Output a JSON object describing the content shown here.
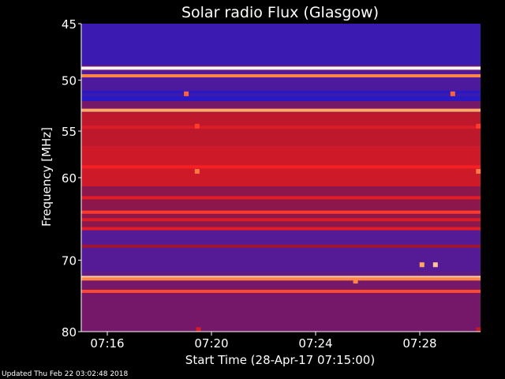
{
  "chart_data": {
    "type": "heatmap",
    "title": "Solar radio Flux (Glasgow)",
    "xlabel": "Start Time (28-Apr-17 07:15:00)",
    "ylabel": "Frequency [MHz]",
    "x_start": "07:15:00",
    "x_end": "07:30:20",
    "ylim": [
      45,
      80
    ],
    "y_ticks": [
      "45",
      "50",
      "55",
      "60",
      "70",
      "80"
    ],
    "x_ticks": [
      "07:16",
      "07:20",
      "07:24",
      "07:28"
    ],
    "y_scale": "log",
    "colormap": [
      "#000044",
      "#1a1ad0",
      "#5a1a90",
      "#a01530",
      "#ff2020",
      "#ffa050",
      "#ffffff"
    ],
    "background_bands": [
      {
        "f_from": 45.0,
        "f_to": 48.6,
        "level": 0.25
      },
      {
        "f_from": 49.2,
        "f_to": 51.0,
        "level": 0.3
      },
      {
        "f_from": 51.0,
        "f_to": 52.0,
        "level": 0.2
      },
      {
        "f_from": 52.0,
        "f_to": 52.9,
        "level": 0.4
      },
      {
        "f_from": 53.1,
        "f_to": 56.5,
        "level": 0.55
      },
      {
        "f_from": 56.5,
        "f_to": 61.0,
        "level": 0.58
      },
      {
        "f_from": 61.0,
        "f_to": 66.0,
        "level": 0.45
      },
      {
        "f_from": 66.0,
        "f_to": 71.5,
        "level": 0.32
      },
      {
        "f_from": 72.5,
        "f_to": 80.0,
        "level": 0.4
      }
    ],
    "interference_lines": [
      {
        "f": 48.9,
        "level": 0.98
      },
      {
        "f": 49.6,
        "level": 0.8
      },
      {
        "f": 51.4,
        "level": 0.25
      },
      {
        "f": 52.9,
        "level": 0.85
      },
      {
        "f": 54.6,
        "level": 0.6
      },
      {
        "f": 58.8,
        "level": 0.65
      },
      {
        "f": 62.3,
        "level": 0.62
      },
      {
        "f": 64.0,
        "level": 0.7
      },
      {
        "f": 64.9,
        "level": 0.6
      },
      {
        "f": 66.0,
        "level": 0.62
      },
      {
        "f": 68.2,
        "level": 0.5
      },
      {
        "f": 72.3,
        "level": 0.92
      },
      {
        "f": 72.5,
        "level": 0.8
      },
      {
        "f": 74.2,
        "level": 0.72
      }
    ],
    "bursts": [
      {
        "time": "07:19:02",
        "f": 51.3,
        "level": 0.75
      },
      {
        "time": "07:29:16",
        "f": 51.3,
        "level": 0.75
      },
      {
        "time": "07:19:27",
        "f": 54.5,
        "level": 0.7
      },
      {
        "time": "07:19:27",
        "f": 59.3,
        "level": 0.78
      },
      {
        "time": "07:30:15",
        "f": 54.5,
        "level": 0.7
      },
      {
        "time": "07:30:15",
        "f": 59.3,
        "level": 0.78
      },
      {
        "time": "07:28:05",
        "f": 70.6,
        "level": 0.85
      },
      {
        "time": "07:28:36",
        "f": 70.6,
        "level": 0.9
      },
      {
        "time": "07:25:32",
        "f": 72.8,
        "level": 0.8
      },
      {
        "time": "07:19:30",
        "f": 79.7,
        "level": 0.6
      },
      {
        "time": "07:30:15",
        "f": 79.7,
        "level": 0.55
      }
    ]
  },
  "footer": {
    "updated": "Updated Thu Feb 22 03:02:48 2018"
  }
}
